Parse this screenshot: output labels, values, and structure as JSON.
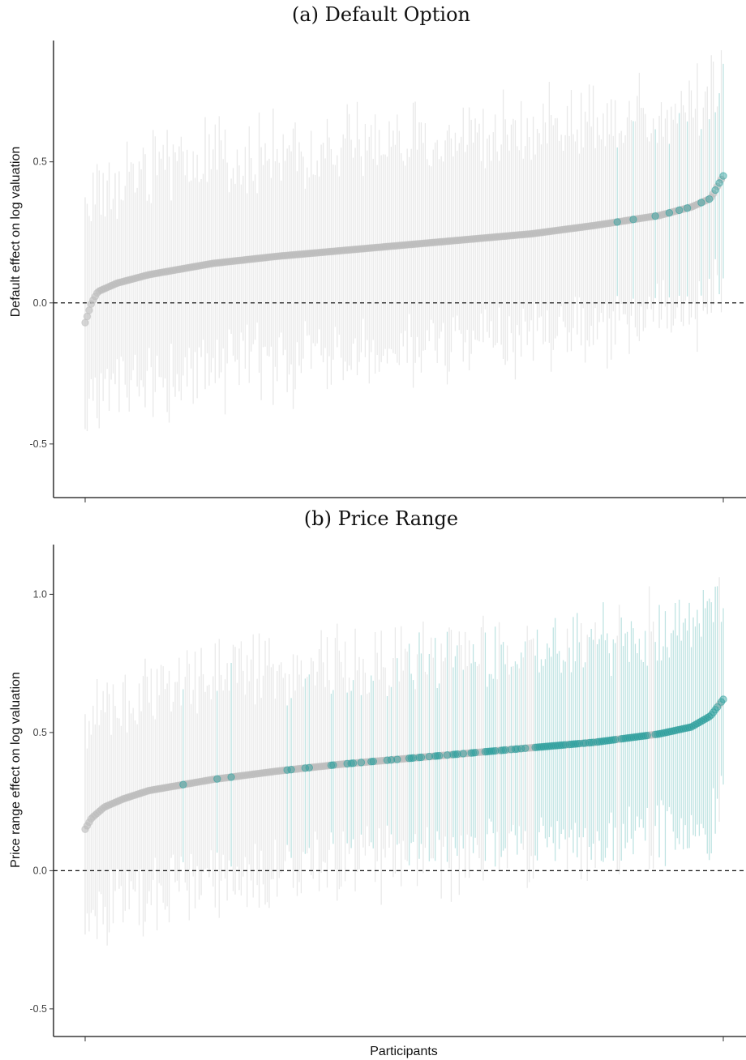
{
  "chart_data": [
    {
      "type": "scatter",
      "title": "(a) Default Option",
      "ylabel": "Default effect on log valuation",
      "xlabel": "",
      "ylim": [
        -0.69,
        0.93
      ],
      "yticks": [
        -0.5,
        0.0,
        0.5
      ],
      "ytick_labels": [
        "-0.5",
        "0.0",
        "0.5"
      ],
      "reference_line": 0.0,
      "grid": false,
      "n_participants": 320,
      "x_description": "participants sorted by point estimate",
      "estimate_profile": [
        {
          "q": 0.0,
          "y": -0.07
        },
        {
          "q": 0.01,
          "y": 0.0
        },
        {
          "q": 0.02,
          "y": 0.04
        },
        {
          "q": 0.05,
          "y": 0.07
        },
        {
          "q": 0.1,
          "y": 0.1
        },
        {
          "q": 0.2,
          "y": 0.14
        },
        {
          "q": 0.3,
          "y": 0.165
        },
        {
          "q": 0.4,
          "y": 0.185
        },
        {
          "q": 0.5,
          "y": 0.205
        },
        {
          "q": 0.6,
          "y": 0.225
        },
        {
          "q": 0.7,
          "y": 0.245
        },
        {
          "q": 0.8,
          "y": 0.275
        },
        {
          "q": 0.9,
          "y": 0.31
        },
        {
          "q": 0.95,
          "y": 0.34
        },
        {
          "q": 0.98,
          "y": 0.37
        },
        {
          "q": 1.0,
          "y": 0.45
        }
      ],
      "ci_halfwidth_mean": 0.36,
      "significant_profile": [
        {
          "q": 0.0,
          "p": 0.0
        },
        {
          "q": 0.7,
          "p": 0.0
        },
        {
          "q": 0.72,
          "p": 0.08
        },
        {
          "q": 0.85,
          "p": 0.25
        },
        {
          "q": 0.93,
          "p": 0.5
        },
        {
          "q": 1.0,
          "p": 0.85
        }
      ],
      "colors": {
        "not_significant": "#bdbdbd",
        "significant": "#2a9d9b",
        "ci_not_significant": "#e4e4e4",
        "ci_significant": "#a9d9d8"
      },
      "legend": "none"
    },
    {
      "type": "scatter",
      "title": "(b) Price Range",
      "ylabel": "Price range effect on log valuation",
      "xlabel": "Participants",
      "ylim": [
        -0.6,
        1.18
      ],
      "yticks": [
        -0.5,
        0.0,
        0.5,
        1.0
      ],
      "ytick_labels": [
        "-0.5",
        "0.0",
        "0.5",
        "1.0"
      ],
      "reference_line": 0.0,
      "grid": false,
      "n_participants": 320,
      "x_description": "participants sorted by point estimate",
      "estimate_profile": [
        {
          "q": 0.0,
          "y": 0.15
        },
        {
          "q": 0.01,
          "y": 0.19
        },
        {
          "q": 0.03,
          "y": 0.23
        },
        {
          "q": 0.06,
          "y": 0.26
        },
        {
          "q": 0.1,
          "y": 0.29
        },
        {
          "q": 0.2,
          "y": 0.33
        },
        {
          "q": 0.3,
          "y": 0.36
        },
        {
          "q": 0.4,
          "y": 0.385
        },
        {
          "q": 0.5,
          "y": 0.405
        },
        {
          "q": 0.6,
          "y": 0.425
        },
        {
          "q": 0.7,
          "y": 0.445
        },
        {
          "q": 0.8,
          "y": 0.465
        },
        {
          "q": 0.9,
          "y": 0.495
        },
        {
          "q": 0.95,
          "y": 0.52
        },
        {
          "q": 0.98,
          "y": 0.56
        },
        {
          "q": 1.0,
          "y": 0.62
        }
      ],
      "ci_halfwidth_mean": 0.36,
      "significant_profile": [
        {
          "q": 0.0,
          "p": 0.0
        },
        {
          "q": 0.08,
          "p": 0.0
        },
        {
          "q": 0.12,
          "p": 0.15
        },
        {
          "q": 0.3,
          "p": 0.4
        },
        {
          "q": 0.5,
          "p": 0.6
        },
        {
          "q": 0.7,
          "p": 0.8
        },
        {
          "q": 0.85,
          "p": 0.92
        },
        {
          "q": 1.0,
          "p": 0.97
        }
      ],
      "colors": {
        "not_significant": "#bdbdbd",
        "significant": "#2a9d9b",
        "ci_not_significant": "#e4e4e4",
        "ci_significant": "#a9d9d8"
      },
      "legend": "none"
    }
  ]
}
